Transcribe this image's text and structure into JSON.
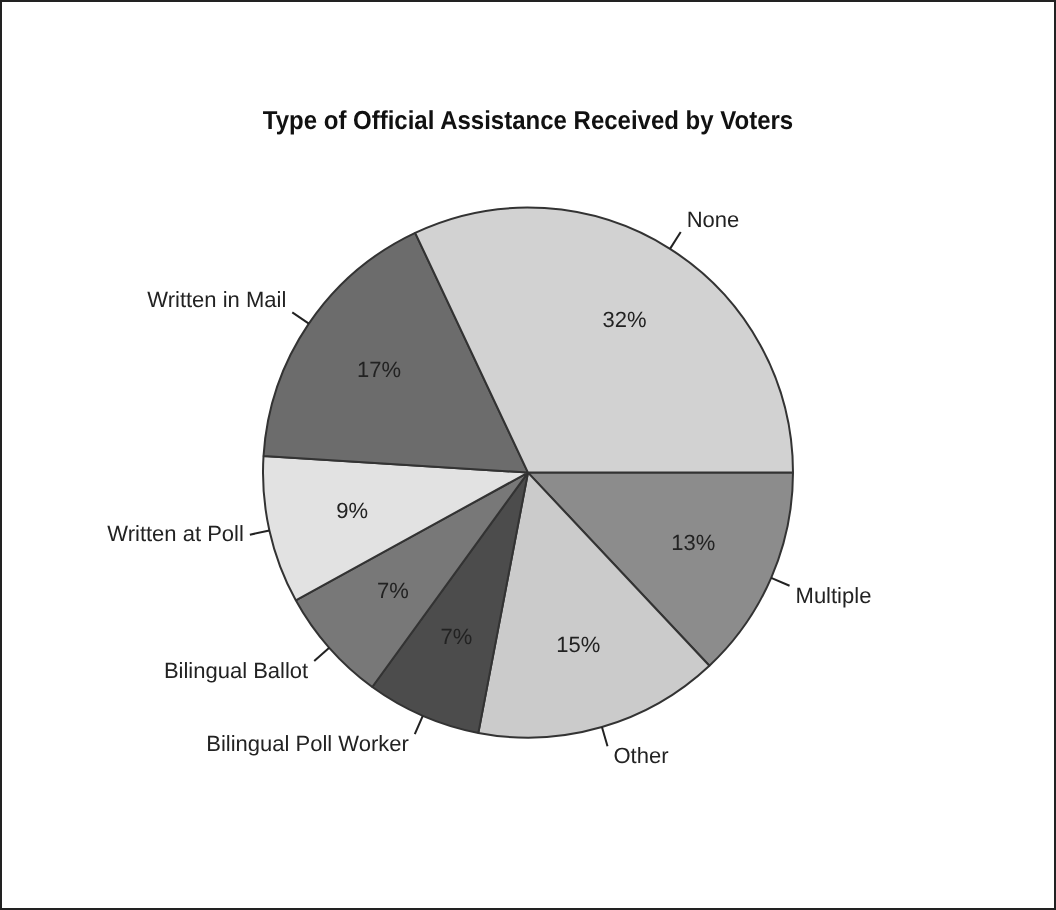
{
  "chart_data": {
    "type": "pie",
    "title": "Type of Official Assistance Received by Voters",
    "categories": [
      "Multiple",
      "Other",
      "Bilingual Poll Worker",
      "Bilingual Ballot",
      "Written at Poll",
      "Written in Mail",
      "None"
    ],
    "values": [
      13,
      15,
      7,
      7,
      9,
      17,
      32
    ],
    "value_labels": [
      "13%",
      "15%",
      "7%",
      "7%",
      "9%",
      "17%",
      "32%"
    ],
    "colors": [
      "#8c8c8c",
      "#cbcbcb",
      "#4c4c4c",
      "#787878",
      "#e2e2e2",
      "#6c6c6c",
      "#d2d2d2"
    ],
    "legend": false
  }
}
